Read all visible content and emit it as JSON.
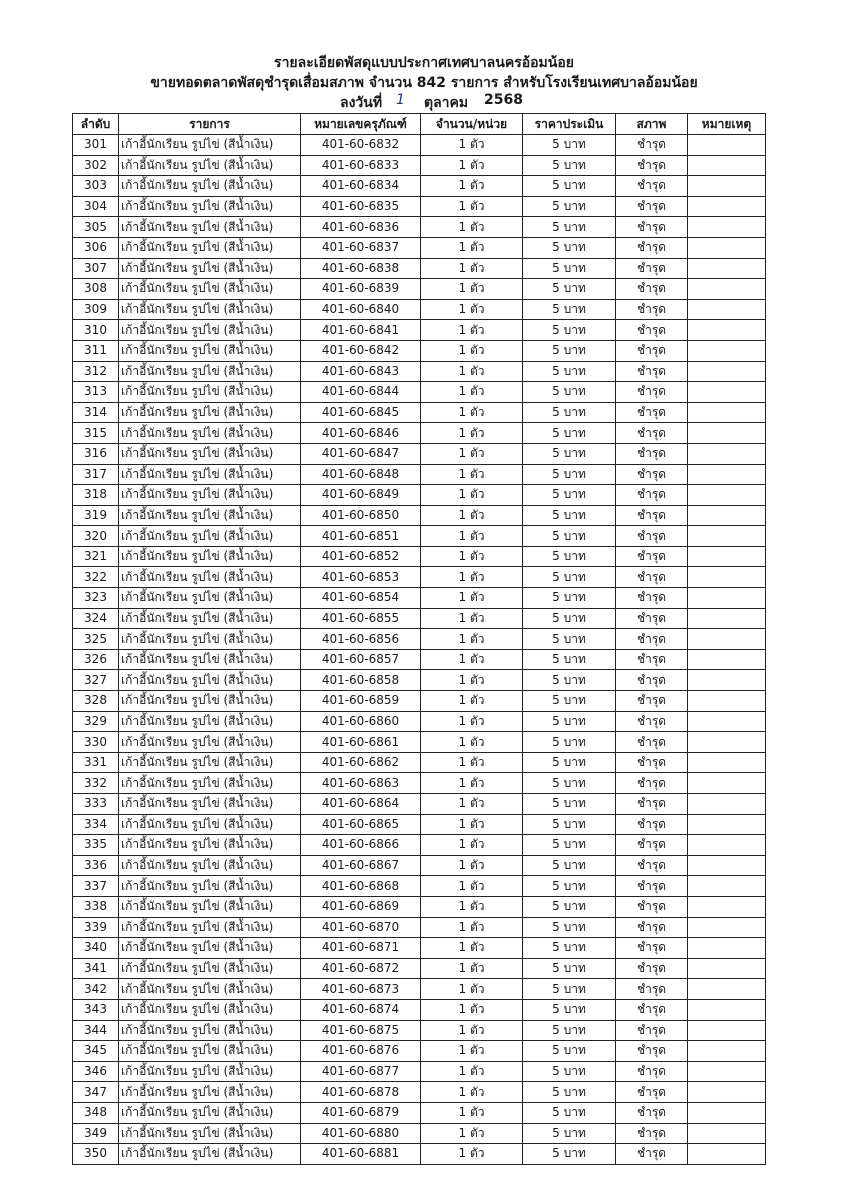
{
  "header": {
    "line1": "รายละเอียดพัสดุแบบประกาศเทศบาลนครอ้อมน้อย",
    "line2": "ขายทอดตลาดพัสดุชำรุดเสื่อมสภาพ จำนวน 842 รายการ สำหรับโรงเรียนเทศบาลอ้อมน้อย",
    "date": {
      "label": "ลงวันที่",
      "day": "1",
      "month": "ตุลาคม",
      "year": "2568"
    }
  },
  "table": {
    "columns": [
      "ลำดับ",
      "รายการ",
      "หมายเลขครุภัณฑ์",
      "จำนวน/หน่วย",
      "ราคาประเมิน",
      "สภาพ",
      "หมายเหตุ"
    ],
    "rows": [
      [
        "301",
        "เก้าอี้นักเรียน รูปไข่ (สีน้ำเงิน)",
        "401-60-6832",
        "1 ตัว",
        "5 บาท",
        "ชำรุด"
      ],
      [
        "302",
        "เก้าอี้นักเรียน รูปไข่ (สีน้ำเงิน)",
        "401-60-6833",
        "1 ตัว",
        "5 บาท",
        "ชำรุด"
      ],
      [
        "303",
        "เก้าอี้นักเรียน รูปไข่ (สีน้ำเงิน)",
        "401-60-6834",
        "1 ตัว",
        "5 บาท",
        "ชำรุด"
      ],
      [
        "304",
        "เก้าอี้นักเรียน รูปไข่ (สีน้ำเงิน)",
        "401-60-6835",
        "1 ตัว",
        "5 บาท",
        "ชำรุด"
      ],
      [
        "305",
        "เก้าอี้นักเรียน รูปไข่ (สีน้ำเงิน)",
        "401-60-6836",
        "1 ตัว",
        "5 บาท",
        "ชำรุด"
      ],
      [
        "306",
        "เก้าอี้นักเรียน รูปไข่ (สีน้ำเงิน)",
        "401-60-6837",
        "1 ตัว",
        "5 บาท",
        "ชำรุด"
      ],
      [
        "307",
        "เก้าอี้นักเรียน รูปไข่ (สีน้ำเงิน)",
        "401-60-6838",
        "1 ตัว",
        "5 บาท",
        "ชำรุด"
      ],
      [
        "308",
        "เก้าอี้นักเรียน รูปไข่ (สีน้ำเงิน)",
        "401-60-6839",
        "1 ตัว",
        "5 บาท",
        "ชำรุด"
      ],
      [
        "309",
        "เก้าอี้นักเรียน รูปไข่ (สีน้ำเงิน)",
        "401-60-6840",
        "1 ตัว",
        "5 บาท",
        "ชำรุด"
      ],
      [
        "310",
        "เก้าอี้นักเรียน รูปไข่ (สีน้ำเงิน)",
        "401-60-6841",
        "1 ตัว",
        "5 บาท",
        "ชำรุด"
      ],
      [
        "311",
        "เก้าอี้นักเรียน รูปไข่ (สีน้ำเงิน)",
        "401-60-6842",
        "1 ตัว",
        "5 บาท",
        "ชำรุด"
      ],
      [
        "312",
        "เก้าอี้นักเรียน รูปไข่ (สีน้ำเงิน)",
        "401-60-6843",
        "1 ตัว",
        "5 บาท",
        "ชำรุด"
      ],
      [
        "313",
        "เก้าอี้นักเรียน รูปไข่ (สีน้ำเงิน)",
        "401-60-6844",
        "1 ตัว",
        "5 บาท",
        "ชำรุด"
      ],
      [
        "314",
        "เก้าอี้นักเรียน รูปไข่ (สีน้ำเงิน)",
        "401-60-6845",
        "1 ตัว",
        "5 บาท",
        "ชำรุด"
      ],
      [
        "315",
        "เก้าอี้นักเรียน รูปไข่ (สีน้ำเงิน)",
        "401-60-6846",
        "1 ตัว",
        "5 บาท",
        "ชำรุด"
      ],
      [
        "316",
        "เก้าอี้นักเรียน รูปไข่ (สีน้ำเงิน)",
        "401-60-6847",
        "1 ตัว",
        "5 บาท",
        "ชำรุด"
      ],
      [
        "317",
        "เก้าอี้นักเรียน รูปไข่ (สีน้ำเงิน)",
        "401-60-6848",
        "1 ตัว",
        "5 บาท",
        "ชำรุด"
      ],
      [
        "318",
        "เก้าอี้นักเรียน รูปไข่ (สีน้ำเงิน)",
        "401-60-6849",
        "1 ตัว",
        "5 บาท",
        "ชำรุด"
      ],
      [
        "319",
        "เก้าอี้นักเรียน รูปไข่ (สีน้ำเงิน)",
        "401-60-6850",
        "1 ตัว",
        "5 บาท",
        "ชำรุด"
      ],
      [
        "320",
        "เก้าอี้นักเรียน รูปไข่ (สีน้ำเงิน)",
        "401-60-6851",
        "1 ตัว",
        "5 บาท",
        "ชำรุด"
      ],
      [
        "321",
        "เก้าอี้นักเรียน รูปไข่ (สีน้ำเงิน)",
        "401-60-6852",
        "1 ตัว",
        "5 บาท",
        "ชำรุด"
      ],
      [
        "322",
        "เก้าอี้นักเรียน รูปไข่ (สีน้ำเงิน)",
        "401-60-6853",
        "1 ตัว",
        "5 บาท",
        "ชำรุด"
      ],
      [
        "323",
        "เก้าอี้นักเรียน รูปไข่ (สีน้ำเงิน)",
        "401-60-6854",
        "1 ตัว",
        "5 บาท",
        "ชำรุด"
      ],
      [
        "324",
        "เก้าอี้นักเรียน รูปไข่ (สีน้ำเงิน)",
        "401-60-6855",
        "1 ตัว",
        "5 บาท",
        "ชำรุด"
      ],
      [
        "325",
        "เก้าอี้นักเรียน รูปไข่ (สีน้ำเงิน)",
        "401-60-6856",
        "1 ตัว",
        "5 บาท",
        "ชำรุด"
      ],
      [
        "326",
        "เก้าอี้นักเรียน รูปไข่ (สีน้ำเงิน)",
        "401-60-6857",
        "1 ตัว",
        "5 บาท",
        "ชำรุด"
      ],
      [
        "327",
        "เก้าอี้นักเรียน รูปไข่ (สีน้ำเงิน)",
        "401-60-6858",
        "1 ตัว",
        "5 บาท",
        "ชำรุด"
      ],
      [
        "328",
        "เก้าอี้นักเรียน รูปไข่ (สีน้ำเงิน)",
        "401-60-6859",
        "1 ตัว",
        "5 บาท",
        "ชำรุด"
      ],
      [
        "329",
        "เก้าอี้นักเรียน รูปไข่ (สีน้ำเงิน)",
        "401-60-6860",
        "1 ตัว",
        "5 บาท",
        "ชำรุด"
      ],
      [
        "330",
        "เก้าอี้นักเรียน รูปไข่ (สีน้ำเงิน)",
        "401-60-6861",
        "1 ตัว",
        "5 บาท",
        "ชำรุด"
      ],
      [
        "331",
        "เก้าอี้นักเรียน รูปไข่ (สีน้ำเงิน)",
        "401-60-6862",
        "1 ตัว",
        "5 บาท",
        "ชำรุด"
      ],
      [
        "332",
        "เก้าอี้นักเรียน รูปไข่ (สีน้ำเงิน)",
        "401-60-6863",
        "1 ตัว",
        "5 บาท",
        "ชำรุด"
      ],
      [
        "333",
        "เก้าอี้นักเรียน รูปไข่ (สีน้ำเงิน)",
        "401-60-6864",
        "1 ตัว",
        "5 บาท",
        "ชำรุด"
      ],
      [
        "334",
        "เก้าอี้นักเรียน รูปไข่ (สีน้ำเงิน)",
        "401-60-6865",
        "1 ตัว",
        "5 บาท",
        "ชำรุด"
      ],
      [
        "335",
        "เก้าอี้นักเรียน รูปไข่ (สีน้ำเงิน)",
        "401-60-6866",
        "1 ตัว",
        "5 บาท",
        "ชำรุด"
      ],
      [
        "336",
        "เก้าอี้นักเรียน รูปไข่ (สีน้ำเงิน)",
        "401-60-6867",
        "1 ตัว",
        "5 บาท",
        "ชำรุด"
      ],
      [
        "337",
        "เก้าอี้นักเรียน รูปไข่ (สีน้ำเงิน)",
        "401-60-6868",
        "1 ตัว",
        "5 บาท",
        "ชำรุด"
      ],
      [
        "338",
        "เก้าอี้นักเรียน รูปไข่ (สีน้ำเงิน)",
        "401-60-6869",
        "1 ตัว",
        "5 บาท",
        "ชำรุด"
      ],
      [
        "339",
        "เก้าอี้นักเรียน รูปไข่ (สีน้ำเงิน)",
        "401-60-6870",
        "1 ตัว",
        "5 บาท",
        "ชำรุด"
      ],
      [
        "340",
        "เก้าอี้นักเรียน รูปไข่ (สีน้ำเงิน)",
        "401-60-6871",
        "1 ตัว",
        "5 บาท",
        "ชำรุด"
      ],
      [
        "341",
        "เก้าอี้นักเรียน รูปไข่ (สีน้ำเงิน)",
        "401-60-6872",
        "1 ตัว",
        "5 บาท",
        "ชำรุด"
      ],
      [
        "342",
        "เก้าอี้นักเรียน รูปไข่ (สีน้ำเงิน)",
        "401-60-6873",
        "1 ตัว",
        "5 บาท",
        "ชำรุด"
      ],
      [
        "343",
        "เก้าอี้นักเรียน รูปไข่ (สีน้ำเงิน)",
        "401-60-6874",
        "1 ตัว",
        "5 บาท",
        "ชำรุด"
      ],
      [
        "344",
        "เก้าอี้นักเรียน รูปไข่ (สีน้ำเงิน)",
        "401-60-6875",
        "1 ตัว",
        "5 บาท",
        "ชำรุด"
      ],
      [
        "345",
        "เก้าอี้นักเรียน รูปไข่ (สีน้ำเงิน)",
        "401-60-6876",
        "1 ตัว",
        "5 บาท",
        "ชำรุด"
      ],
      [
        "346",
        "เก้าอี้นักเรียน รูปไข่ (สีน้ำเงิน)",
        "401-60-6877",
        "1 ตัว",
        "5 บาท",
        "ชำรุด"
      ],
      [
        "347",
        "เก้าอี้นักเรียน รูปไข่ (สีน้ำเงิน)",
        "401-60-6878",
        "1 ตัว",
        "5 บาท",
        "ชำรุด"
      ],
      [
        "348",
        "เก้าอี้นักเรียน รูปไข่ (สีน้ำเงิน)",
        "401-60-6879",
        "1 ตัว",
        "5 บาท",
        "ชำรุด"
      ],
      [
        "349",
        "เก้าอี้นักเรียน รูปไข่ (สีน้ำเงิน)",
        "401-60-6880",
        "1 ตัว",
        "5 บาท",
        "ชำรุด"
      ],
      [
        "350",
        "เก้าอี้นักเรียน รูปไข่ (สีน้ำเงิน)",
        "401-60-6881",
        "1 ตัว",
        "5 บาท",
        "ชำรุด"
      ]
    ]
  }
}
